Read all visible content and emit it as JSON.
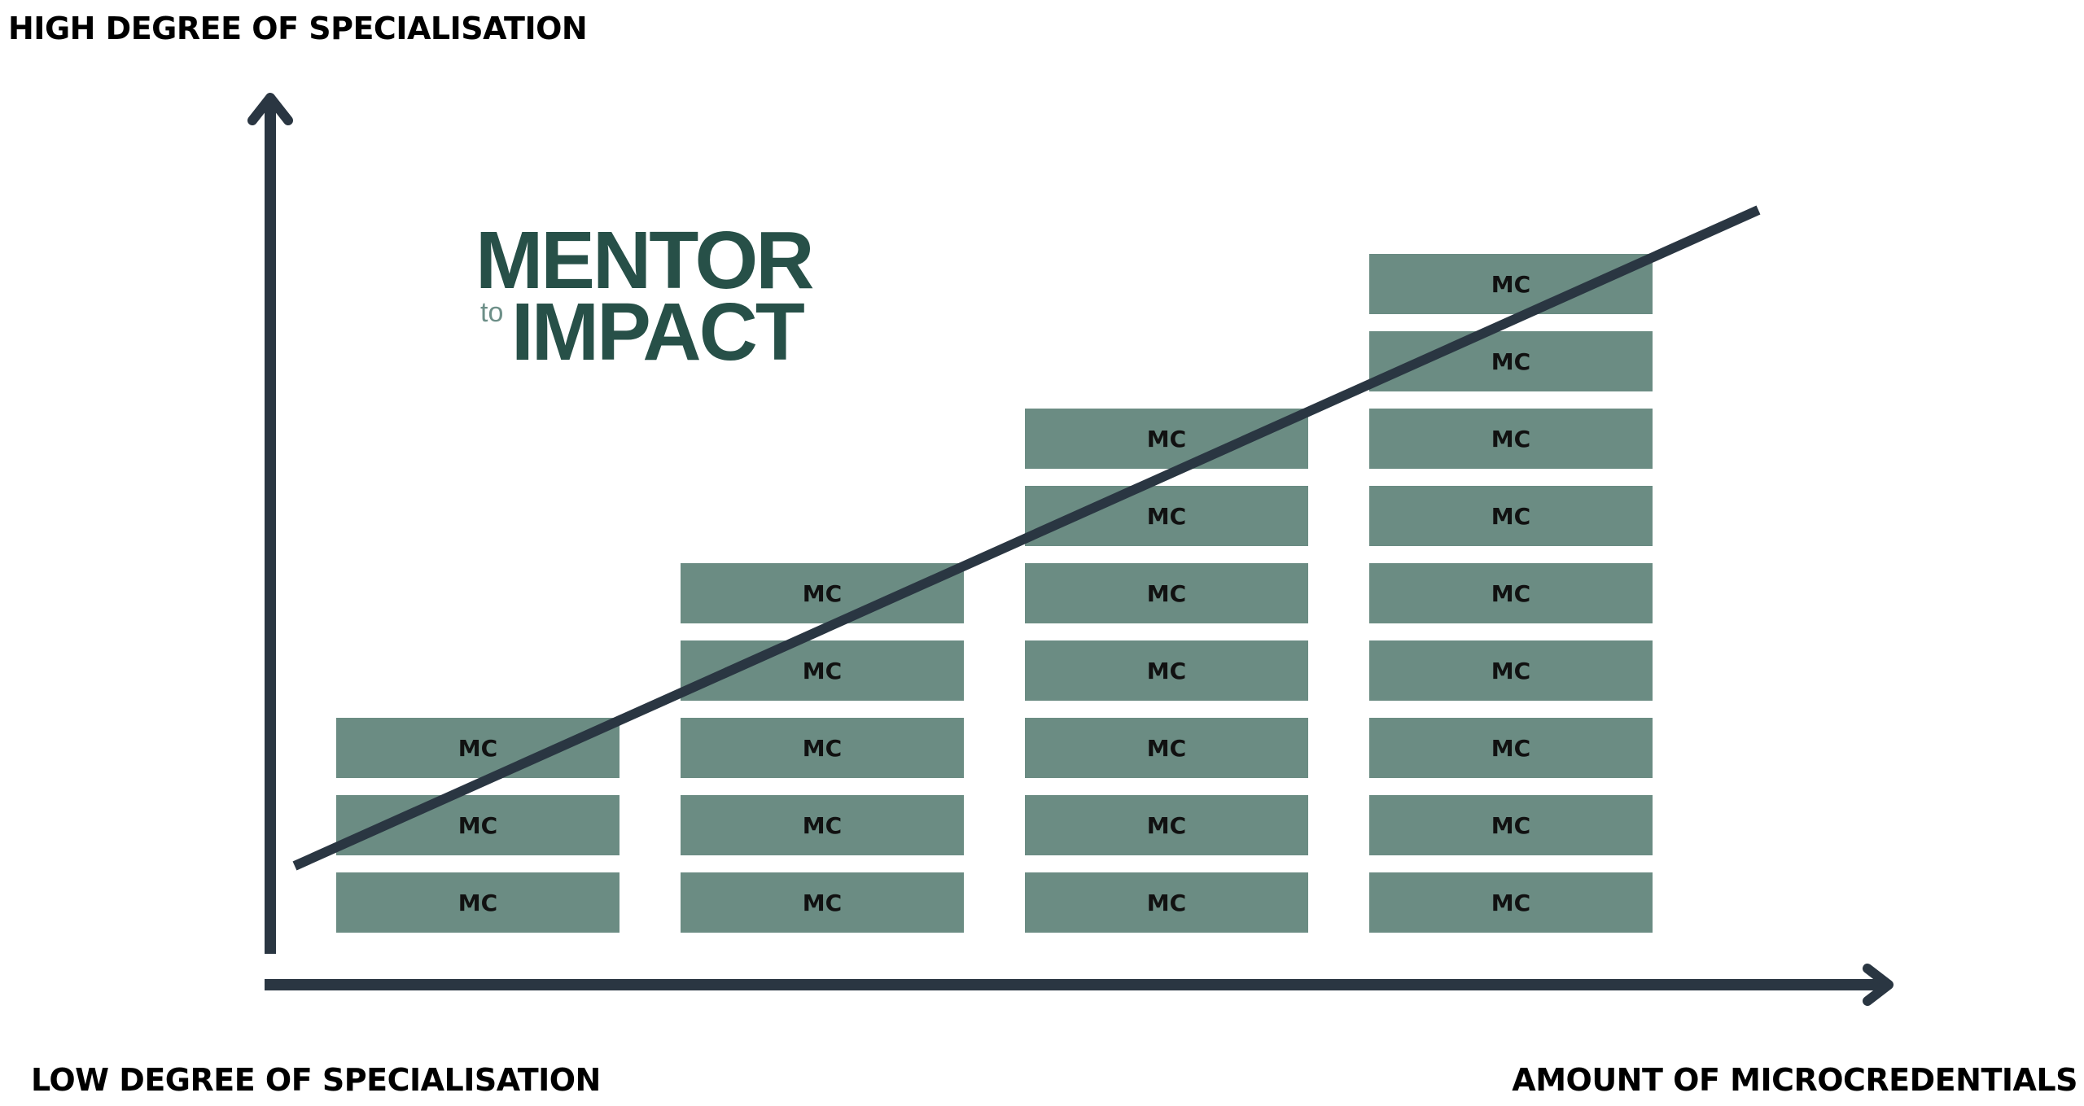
{
  "axes": {
    "y_top_label": "HIGH DEGREE OF SPECIALISATION",
    "y_bottom_label": "LOW DEGREE OF SPECIALISATION",
    "x_label": "AMOUNT OF MICROCREDENTIALS"
  },
  "logo": {
    "line1": "MENTOR",
    "small": "to",
    "line2": "IMPACT"
  },
  "block_label": "MC",
  "columns": [
    {
      "count": 3
    },
    {
      "count": 5
    },
    {
      "count": 7
    },
    {
      "count": 9
    }
  ],
  "colors": {
    "block": "#6b8c83",
    "axis": "#2a3642",
    "logo": "#275048"
  }
}
